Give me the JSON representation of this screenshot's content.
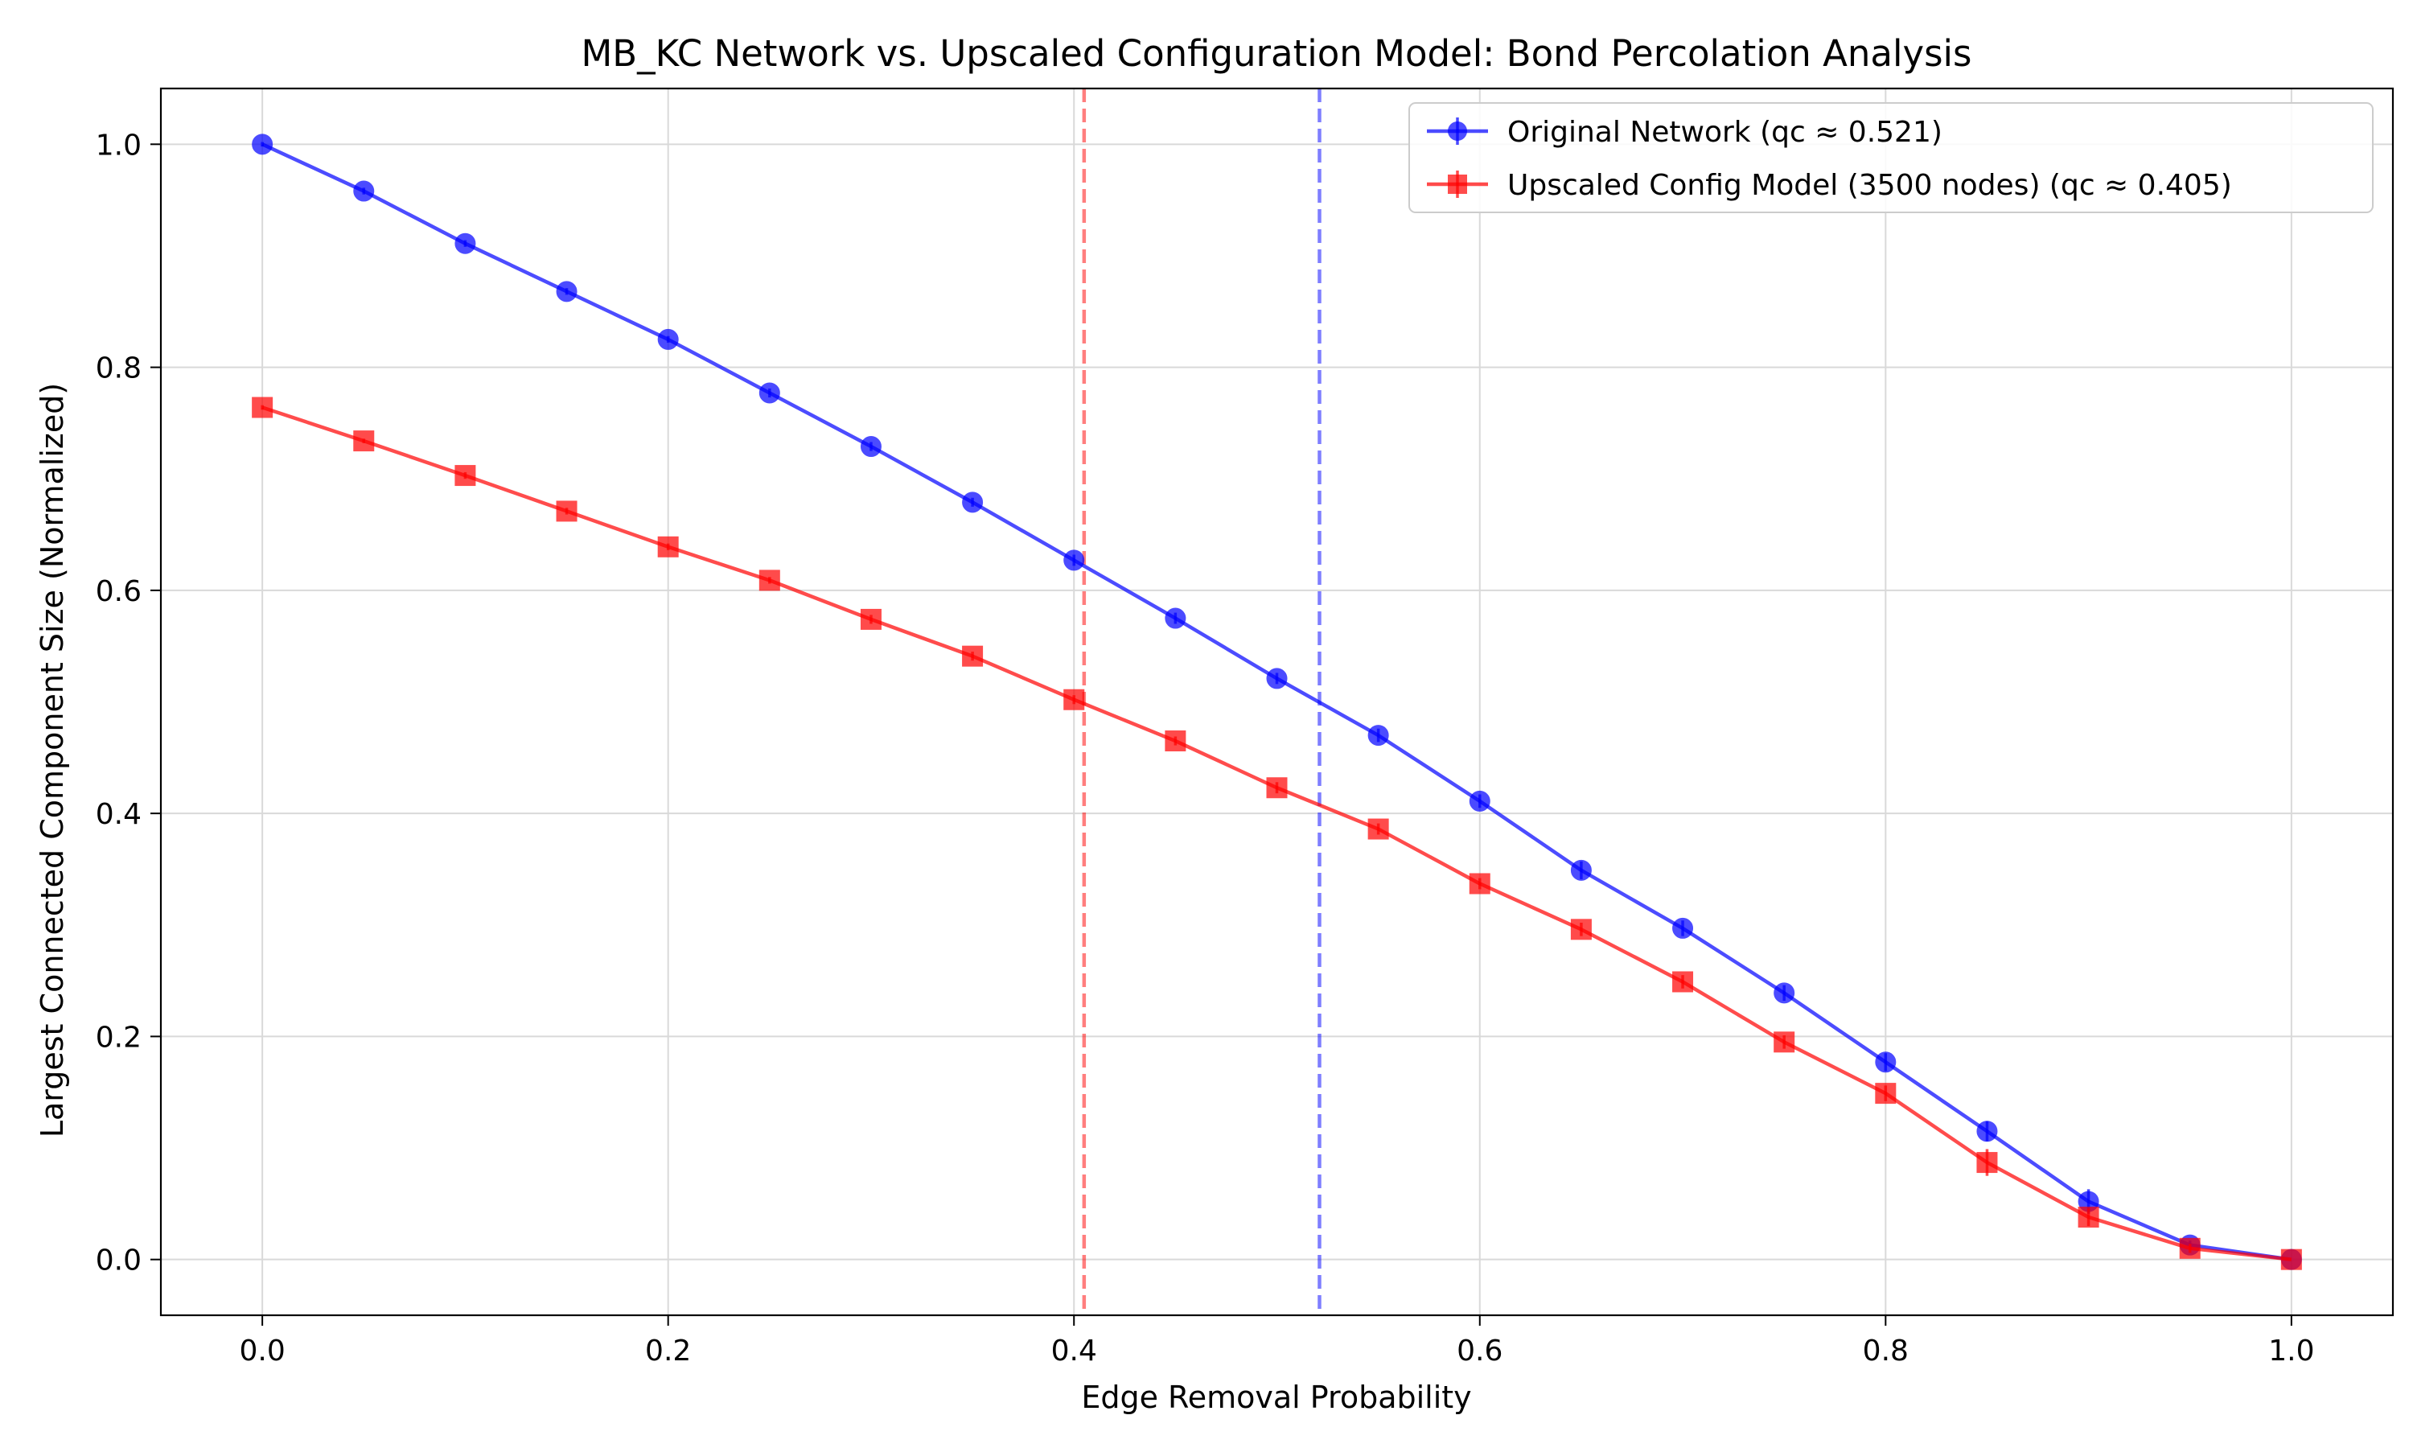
{
  "chart_data": {
    "type": "line",
    "title": "MB_KC Network vs. Upscaled Configuration Model: Bond Percolation Analysis",
    "xlabel": "Edge Removal Probability",
    "ylabel": "Largest Connected Component Size (Normalized)",
    "xlim": [
      -0.05,
      1.05
    ],
    "ylim": [
      -0.05,
      1.05
    ],
    "xticks": [
      0.0,
      0.2,
      0.4,
      0.6,
      0.8,
      1.0
    ],
    "yticks": [
      0.0,
      0.2,
      0.4,
      0.6,
      0.8,
      1.0
    ],
    "grid": true,
    "legend_position": "top-right",
    "x": [
      0.0,
      0.05,
      0.1,
      0.15,
      0.2,
      0.25,
      0.3,
      0.35,
      0.4,
      0.45,
      0.5,
      0.55,
      0.6,
      0.65,
      0.7,
      0.75,
      0.8,
      0.85,
      0.9,
      0.95,
      1.0
    ],
    "series": [
      {
        "name": "Original Network (qc ≈ 0.521)",
        "color": "#0000ff",
        "marker": "circle",
        "values": [
          1.0,
          0.958,
          0.911,
          0.868,
          0.825,
          0.777,
          0.729,
          0.679,
          0.627,
          0.575,
          0.521,
          0.47,
          0.411,
          0.349,
          0.297,
          0.239,
          0.177,
          0.115,
          0.052,
          0.013,
          0.0
        ],
        "errors": [
          0.002,
          0.003,
          0.003,
          0.003,
          0.003,
          0.004,
          0.004,
          0.004,
          0.005,
          0.005,
          0.005,
          0.006,
          0.006,
          0.008,
          0.007,
          0.007,
          0.008,
          0.009,
          0.011,
          0.004,
          0.0
        ]
      },
      {
        "name": "Upscaled Config Model (3500 nodes) (qc ≈ 0.405)",
        "color": "#ff0000",
        "marker": "square",
        "values": [
          0.764,
          0.734,
          0.703,
          0.671,
          0.639,
          0.609,
          0.574,
          0.541,
          0.502,
          0.465,
          0.423,
          0.386,
          0.337,
          0.296,
          0.249,
          0.195,
          0.149,
          0.087,
          0.038,
          0.01,
          0.0
        ],
        "errors": [
          0.002,
          0.002,
          0.003,
          0.003,
          0.003,
          0.003,
          0.004,
          0.004,
          0.004,
          0.004,
          0.005,
          0.005,
          0.005,
          0.006,
          0.006,
          0.006,
          0.007,
          0.012,
          0.008,
          0.004,
          0.0
        ]
      }
    ],
    "vlines": [
      {
        "x": 0.405,
        "color": "#ff0000"
      },
      {
        "x": 0.521,
        "color": "#0000ff"
      }
    ]
  }
}
